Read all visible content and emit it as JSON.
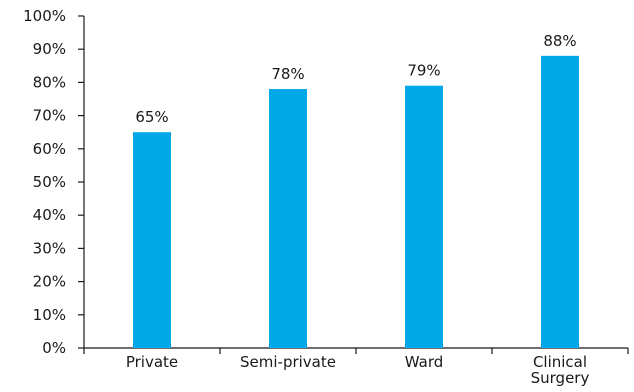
{
  "chart_data": {
    "type": "bar",
    "categories": [
      [
        "Private"
      ],
      [
        "Semi-private"
      ],
      [
        "Ward"
      ],
      [
        "Clinical",
        "Surgery"
      ]
    ],
    "values": [
      65,
      78,
      79,
      88
    ],
    "data_labels": [
      "65%",
      "78%",
      "79%",
      "88%"
    ],
    "y_ticks": [
      "0%",
      "10%",
      "20%",
      "30%",
      "40%",
      "50%",
      "60%",
      "70%",
      "80%",
      "90%",
      "100%"
    ],
    "ylim": [
      0,
      100
    ],
    "title": "",
    "xlabel": "",
    "ylabel": "",
    "bar_color": "#00a8e8",
    "grid": false,
    "legend": "none"
  }
}
